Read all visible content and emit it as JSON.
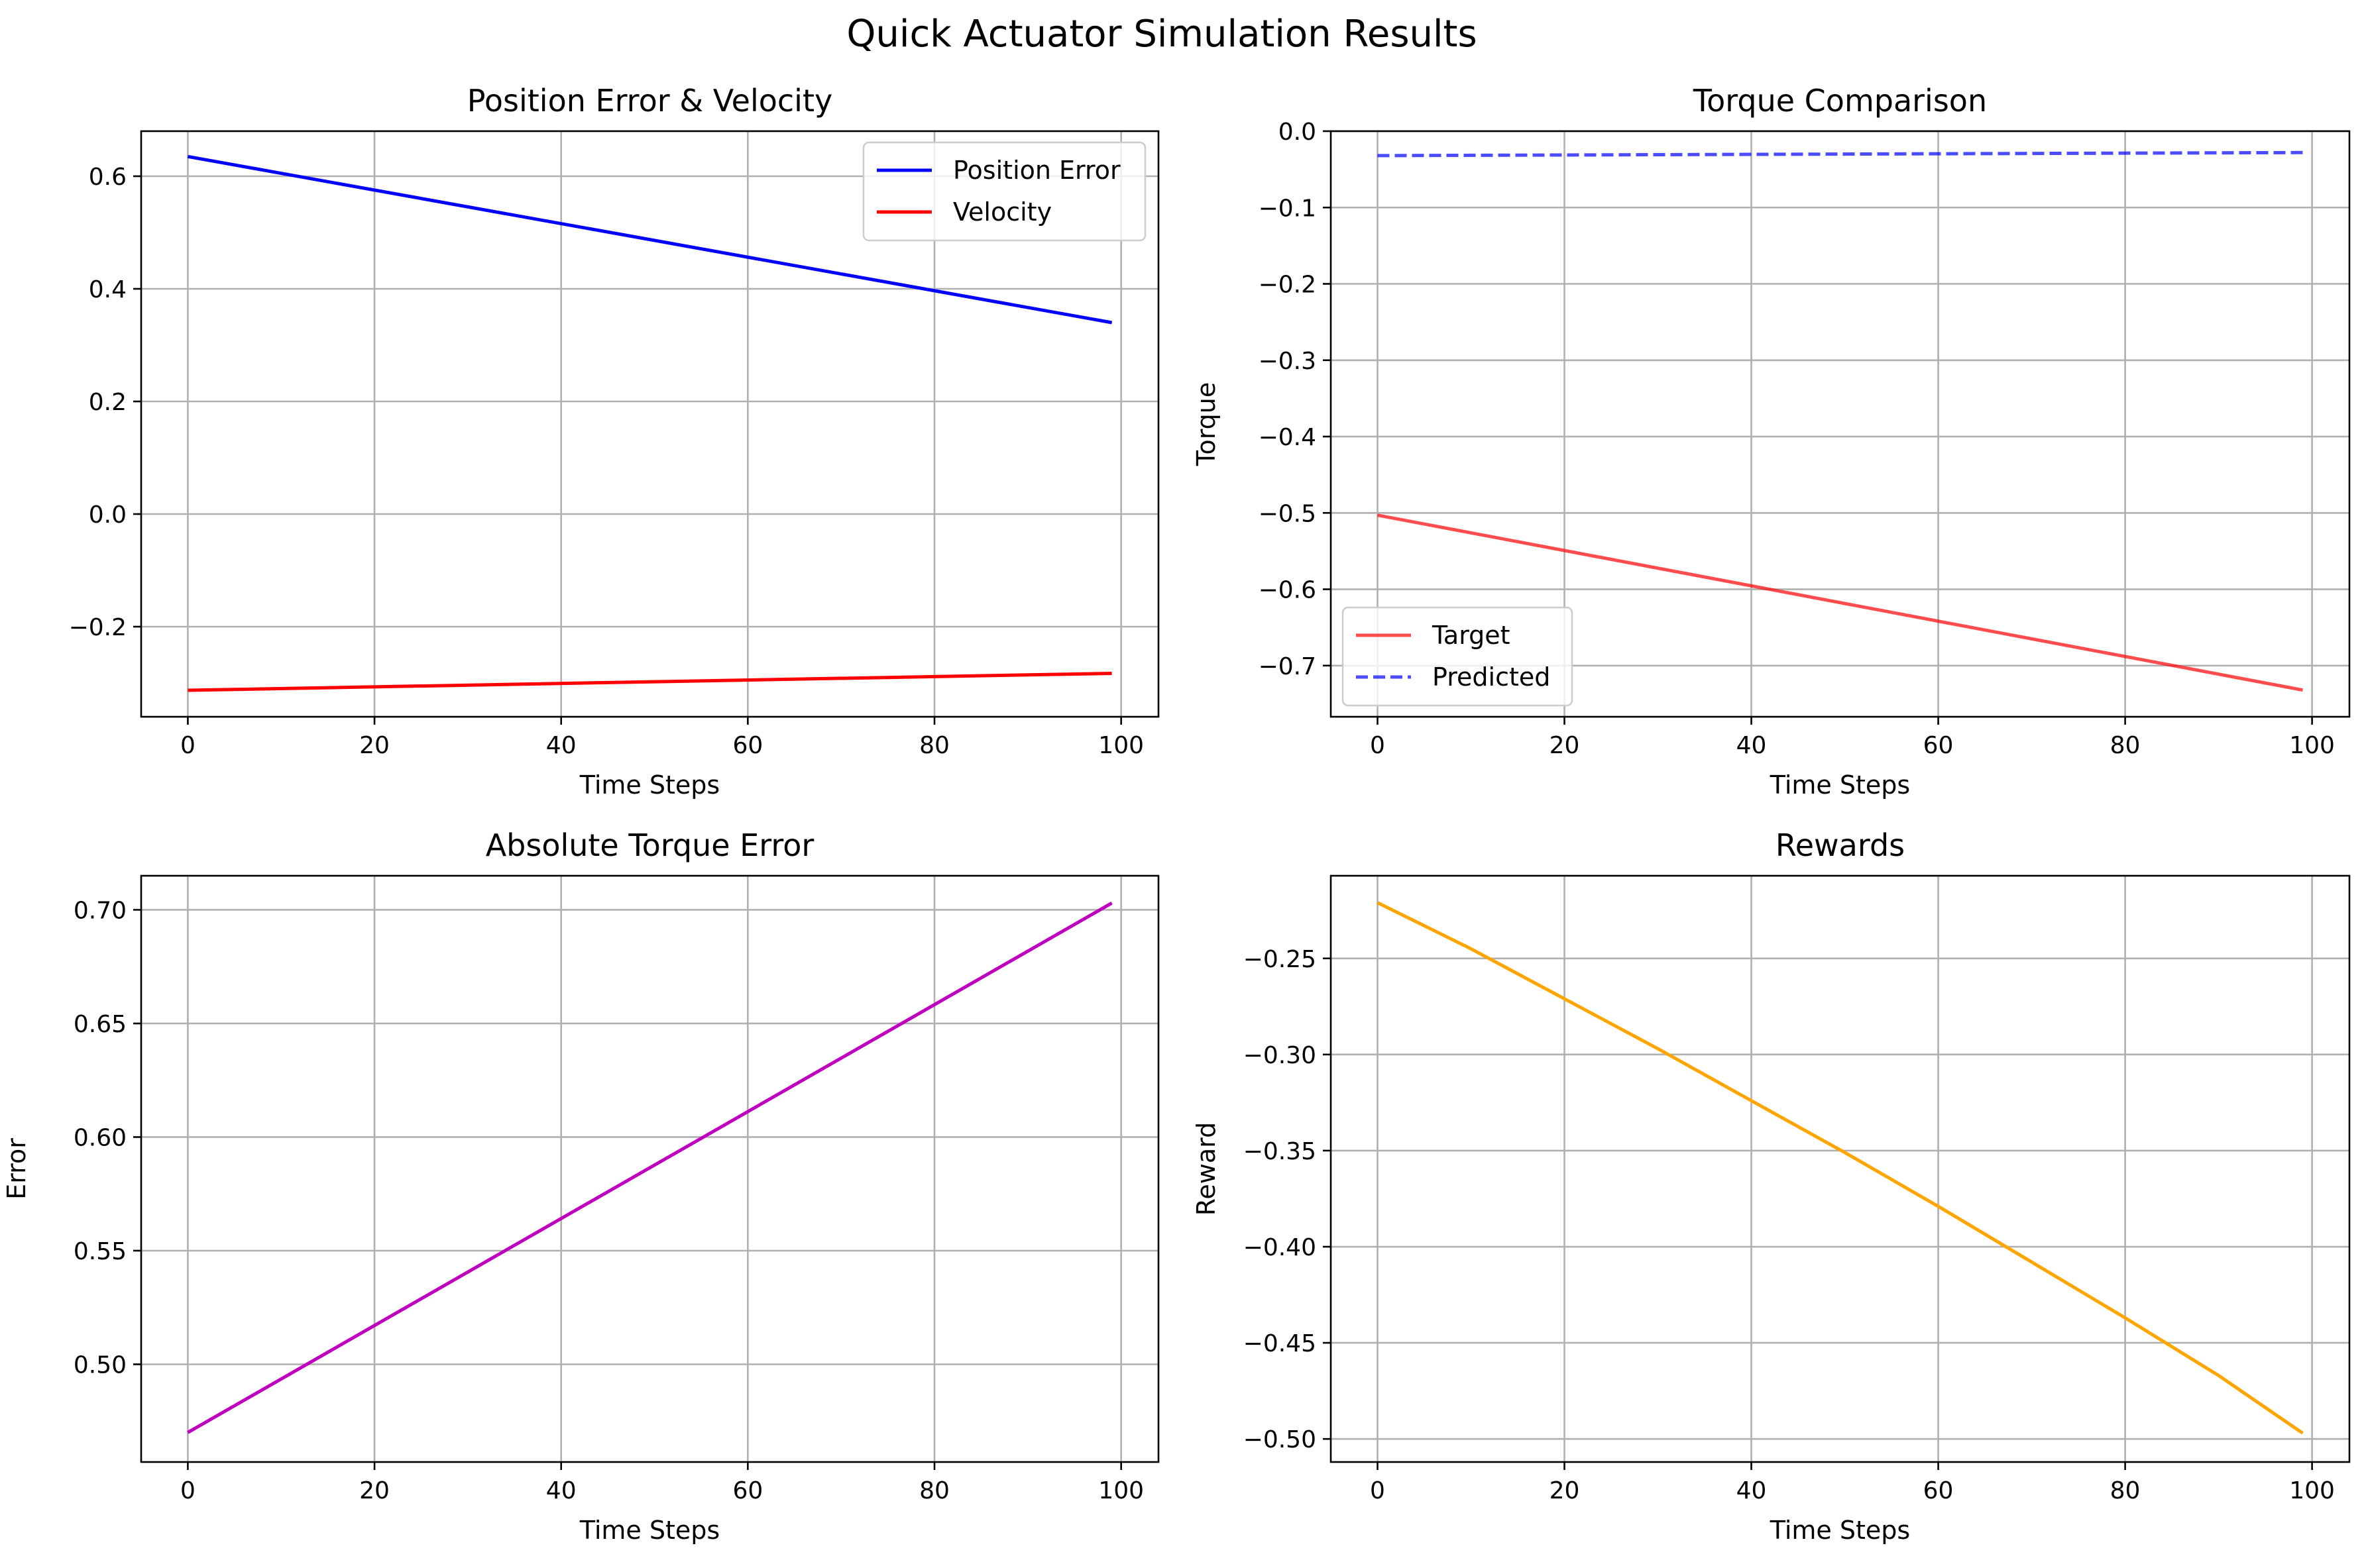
{
  "figure": {
    "title": "Quick Actuator Simulation Results"
  },
  "chart_data": [
    {
      "type": "line",
      "title": "Position Error & Velocity",
      "xlabel": "Time Steps",
      "ylabel": "",
      "xlim": [
        -5,
        104
      ],
      "ylim": [
        -0.36,
        0.68
      ],
      "xticks": [
        0,
        20,
        40,
        60,
        80,
        100
      ],
      "yticks": [
        -0.2,
        0.0,
        0.2,
        0.4,
        0.6
      ],
      "grid": true,
      "legend": "upper right",
      "series": [
        {
          "name": "Position Error",
          "color": "#0000ff",
          "dash": "solid",
          "opacity": 1.0,
          "x": [
            0,
            99
          ],
          "y": [
            0.635,
            0.34
          ]
        },
        {
          "name": "Velocity",
          "color": "#ff0000",
          "dash": "solid",
          "opacity": 1.0,
          "x": [
            0,
            99
          ],
          "y": [
            -0.313,
            -0.283
          ]
        }
      ]
    },
    {
      "type": "line",
      "title": "Torque Comparison",
      "xlabel": "Time Steps",
      "ylabel": "Torque",
      "xlim": [
        -5,
        104
      ],
      "ylim": [
        -0.767,
        0.0
      ],
      "xticks": [
        0,
        20,
        40,
        60,
        80,
        100
      ],
      "yticks": [
        -0.7,
        -0.6,
        -0.5,
        -0.4,
        -0.3,
        -0.2,
        -0.1,
        0.0
      ],
      "grid": true,
      "legend": "lower left",
      "series": [
        {
          "name": "Target",
          "color": "#ff0000",
          "dash": "solid",
          "opacity": 0.7,
          "x": [
            0,
            99
          ],
          "y": [
            -0.503,
            -0.732
          ]
        },
        {
          "name": "Predicted",
          "color": "#0000ff",
          "dash": "dashed",
          "opacity": 0.7,
          "x": [
            0,
            99
          ],
          "y": [
            -0.032,
            -0.028
          ]
        }
      ]
    },
    {
      "type": "line",
      "title": "Absolute Torque Error",
      "xlabel": "Time Steps",
      "ylabel": "Error",
      "xlim": [
        -5,
        104
      ],
      "ylim": [
        0.457,
        0.715
      ],
      "xticks": [
        0,
        20,
        40,
        60,
        80,
        100
      ],
      "yticks": [
        0.5,
        0.55,
        0.6,
        0.65,
        0.7
      ],
      "grid": true,
      "legend": "none",
      "series": [
        {
          "name": "",
          "color": "#bf00bf",
          "dash": "solid",
          "opacity": 1.0,
          "x": [
            0,
            99
          ],
          "y": [
            0.47,
            0.703
          ]
        }
      ]
    },
    {
      "type": "line",
      "title": "Rewards",
      "xlabel": "Time Steps",
      "ylabel": "Reward",
      "xlim": [
        -5,
        104
      ],
      "ylim": [
        -0.512,
        -0.207
      ],
      "xticks": [
        0,
        20,
        40,
        60,
        80,
        100
      ],
      "yticks": [
        -0.25,
        -0.3,
        -0.35,
        -0.4,
        -0.45,
        -0.5
      ],
      "grid": true,
      "legend": "none",
      "series": [
        {
          "name": "",
          "color": "#ffa500",
          "dash": "solid",
          "opacity": 1.0,
          "x": [
            0,
            10,
            20,
            30,
            40,
            50,
            60,
            70,
            80,
            90,
            99
          ],
          "y": [
            -0.221,
            -0.245,
            -0.271,
            -0.297,
            -0.324,
            -0.351,
            -0.379,
            -0.408,
            -0.437,
            -0.467,
            -0.497
          ]
        }
      ]
    }
  ]
}
